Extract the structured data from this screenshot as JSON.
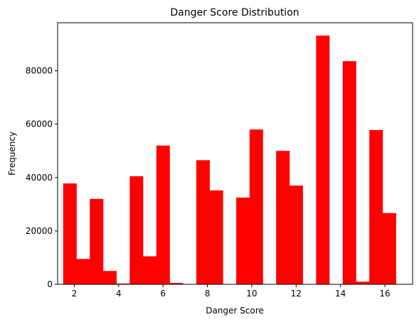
{
  "chart_data": {
    "type": "bar",
    "title": "Danger Score Distribution",
    "xlabel": "Danger Score",
    "ylabel": "Frequency",
    "bar_color": "#ff0000",
    "xlim": [
      1.25,
      17.25
    ],
    "ylim": [
      0,
      98000
    ],
    "bin_width": 0.6,
    "xticks": [
      2,
      4,
      6,
      8,
      10,
      12,
      14,
      16
    ],
    "yticks": [
      0,
      20000,
      40000,
      60000,
      80000
    ],
    "bins": [
      {
        "start": 1.5,
        "value": 37800
      },
      {
        "start": 2.1,
        "value": 9500
      },
      {
        "start": 2.7,
        "value": 32000
      },
      {
        "start": 3.3,
        "value": 5000
      },
      {
        "start": 3.9,
        "value": 300
      },
      {
        "start": 4.5,
        "value": 40500
      },
      {
        "start": 5.1,
        "value": 10500
      },
      {
        "start": 5.7,
        "value": 52000
      },
      {
        "start": 6.3,
        "value": 500
      },
      {
        "start": 6.9,
        "value": 0
      },
      {
        "start": 7.5,
        "value": 46500
      },
      {
        "start": 8.1,
        "value": 35200
      },
      {
        "start": 8.7,
        "value": 0
      },
      {
        "start": 9.3,
        "value": 32500
      },
      {
        "start": 9.9,
        "value": 58000
      },
      {
        "start": 10.5,
        "value": 0
      },
      {
        "start": 11.1,
        "value": 50000
      },
      {
        "start": 11.7,
        "value": 37000
      },
      {
        "start": 12.3,
        "value": 0
      },
      {
        "start": 12.9,
        "value": 93200
      },
      {
        "start": 13.5,
        "value": 0
      },
      {
        "start": 14.1,
        "value": 83600
      },
      {
        "start": 14.7,
        "value": 1000
      },
      {
        "start": 15.3,
        "value": 57800
      },
      {
        "start": 15.9,
        "value": 26700
      }
    ]
  }
}
